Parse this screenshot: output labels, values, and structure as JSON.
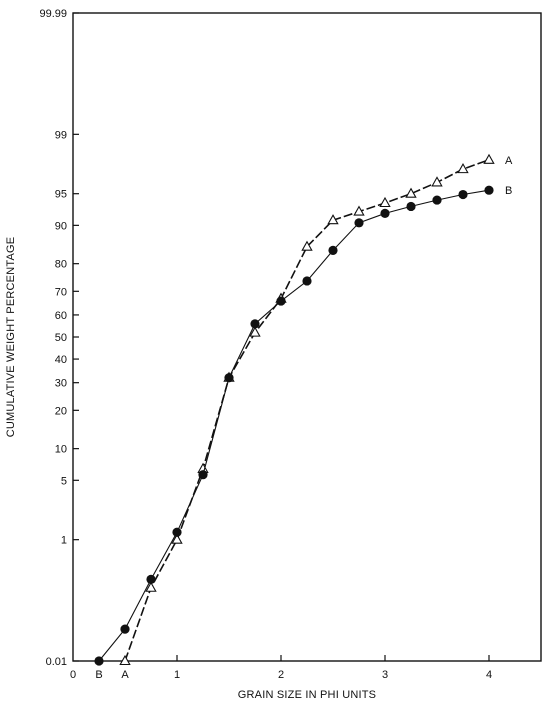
{
  "chart_data": {
    "type": "line",
    "xlabel": "GRAIN SIZE IN PHI UNITS",
    "ylabel": "CUMULATIVE WEIGHT PERCENTAGE",
    "xlim": [
      0,
      4.5
    ],
    "ylim": [
      0.01,
      99.99
    ],
    "y_scale": "probability",
    "grid": false,
    "x_ticks": [
      {
        "value": 0,
        "label": "0"
      },
      {
        "value": 0.25,
        "label": "B"
      },
      {
        "value": 0.5,
        "label": "A"
      },
      {
        "value": 1,
        "label": "1"
      },
      {
        "value": 2,
        "label": "2"
      },
      {
        "value": 3,
        "label": "3"
      },
      {
        "value": 4,
        "label": "4"
      }
    ],
    "y_ticks": [
      0.01,
      1,
      5,
      10,
      20,
      30,
      40,
      50,
      60,
      70,
      80,
      90,
      95,
      99,
      99.99
    ],
    "y_tick_labels": [
      "0.01",
      "1",
      "5",
      "10",
      "20",
      "30",
      "40",
      "50",
      "60",
      "70",
      "80",
      "90",
      "95",
      "99",
      "99.99"
    ],
    "series": [
      {
        "name": "A",
        "marker": "triangle",
        "line_style": "dashed",
        "x": [
          0.5,
          0.75,
          1.0,
          1.25,
          1.5,
          1.75,
          2.0,
          2.25,
          2.5,
          2.75,
          3.0,
          3.25,
          3.5,
          3.75,
          4.0
        ],
        "y": [
          0.01,
          0.2,
          1.0,
          6.5,
          32,
          52,
          67,
          85,
          91,
          92.5,
          93.8,
          95,
          96.2,
          97.3,
          97.9
        ]
      },
      {
        "name": "B",
        "marker": "circle",
        "line_style": "solid",
        "x": [
          0.25,
          0.5,
          0.75,
          1.0,
          1.25,
          1.5,
          1.75,
          2.0,
          2.25,
          2.5,
          2.75,
          3.0,
          3.25,
          3.5,
          3.75,
          4.0
        ],
        "y": [
          0.01,
          0.04,
          0.27,
          1.25,
          5.7,
          32,
          56,
          66,
          74,
          84,
          90.5,
          92.2,
          93.3,
          94.2,
          94.9,
          95.4
        ]
      }
    ]
  }
}
